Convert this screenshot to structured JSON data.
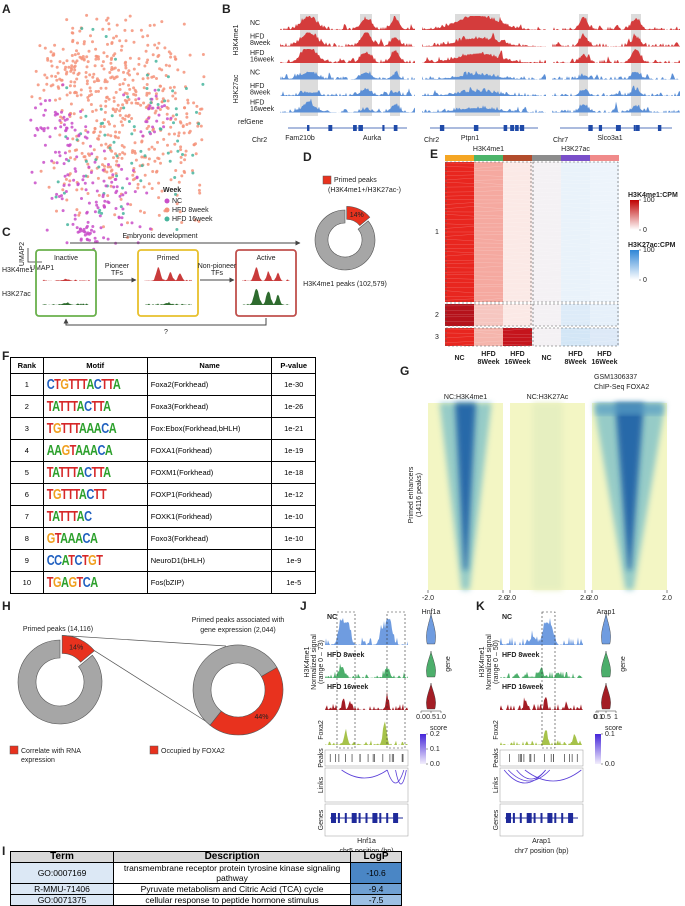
{
  "A": {
    "label": "A",
    "legend_title": "Week",
    "legend": [
      {
        "name": "NC",
        "color": "#c94fc9"
      },
      {
        "name": "HFD 8week",
        "color": "#f4937a"
      },
      {
        "name": "HFD 16week",
        "color": "#47b59d"
      }
    ],
    "xlabel": "UMAP1",
    "ylabel": "UMAP2"
  },
  "B": {
    "label": "B",
    "marks": [
      "H3K4me1",
      "H3K27ac"
    ],
    "tracks": [
      [
        "NC"
      ],
      [
        "HFD",
        "8week"
      ],
      [
        "HFD",
        "16week"
      ],
      [
        "NC"
      ],
      [
        "HFD",
        "8week"
      ],
      [
        "HFD",
        "16week"
      ]
    ],
    "ref": "refGene",
    "loci": [
      {
        "chr": "Chr2",
        "genes": [
          "Fam210b",
          "Aurka"
        ]
      },
      {
        "chr": "Chr2",
        "genes": [
          "Ptpn1"
        ]
      },
      {
        "chr": "Chr7",
        "genes": [
          "Slco3a1"
        ]
      }
    ]
  },
  "C": {
    "label": "C",
    "arrow": "Embryonic development",
    "states": [
      "Inactive",
      "Primed",
      "Active"
    ],
    "marks": [
      "H3K4me1",
      "H3K27ac"
    ],
    "transitions": [
      [
        "Pioneer",
        "TFs"
      ],
      [
        "Non-pioneer",
        "TFs"
      ]
    ],
    "reverse": "?"
  },
  "D": {
    "label": "D",
    "legend": [
      "Primed peaks",
      "(H3K4me1+/H3K27ac-)"
    ],
    "values": [
      14
    ],
    "value_labels": [
      "14%"
    ],
    "total": "H3K4me1 peaks (102,579)"
  },
  "E": {
    "label": "E",
    "groups": [
      "H3K4me1",
      "H3K27ac"
    ],
    "clusters": [
      "1",
      "2",
      "3"
    ],
    "columns": [
      [
        "NC"
      ],
      [
        "HFD",
        "8Week"
      ],
      [
        "HFD",
        "16Week"
      ],
      [
        "NC"
      ],
      [
        "HFD",
        "8Week"
      ],
      [
        "HFD",
        "16Week"
      ]
    ],
    "colorbars": [
      {
        "title": "H3K4me1:CPM",
        "ticks": [
          100,
          0
        ]
      },
      {
        "title": "H3K27ac:CPM",
        "ticks": [
          100,
          0
        ]
      }
    ]
  },
  "F": {
    "label": "F",
    "header": [
      "Rank",
      "Motif",
      "Name",
      "P-value"
    ],
    "rows": [
      [
        1,
        "CTGTTTACTTA",
        "Foxa2(Forkhead)",
        "1e-30"
      ],
      [
        2,
        "TATTTACTTA",
        "Foxa3(Forkhead)",
        "1e-26"
      ],
      [
        3,
        "TGTTTAAACA",
        "Fox:Ebox(Forkhead,bHLH)",
        "1e-21"
      ],
      [
        4,
        "AAGTAAACA",
        "FOXA1(Forkhead)",
        "1e-19"
      ],
      [
        5,
        "TATTTACTTA",
        "FOXM1(Forkhead)",
        "1e-18"
      ],
      [
        6,
        "TGTTTACTT",
        "FOXP1(Forkhead)",
        "1e-12"
      ],
      [
        7,
        "TATTTAC",
        "FOXK1(Forkhead)",
        "1e-10"
      ],
      [
        8,
        "GTAAACA",
        "Foxo3(Forkhead)",
        "1e-10"
      ],
      [
        9,
        "CCATCTGT",
        "NeuroD1(bHLH)",
        "1e-9"
      ],
      [
        10,
        "TGAGTCA",
        "Fos(bZIP)",
        "1e-5"
      ]
    ]
  },
  "G": {
    "label": "G",
    "ylabel": [
      "Primed enhancers",
      "(14116 peaks)"
    ],
    "heatmaps": [
      {
        "title": [
          "NC:H3K4me1"
        ],
        "xticks": [
          {
            "value": -2,
            "label": "-2.0"
          },
          {
            "value": 2,
            "label": "2.0"
          }
        ]
      },
      {
        "title": [
          "NC:H3K27Ac"
        ],
        "xticks": [
          {
            "value": -2,
            "label": "-2.0"
          },
          {
            "value": 2,
            "label": "2.0"
          }
        ]
      },
      {
        "title": [
          "GSM1306337",
          "ChIP-Seq FOXA2"
        ],
        "xticks": [
          {
            "value": -2,
            "label": "-2.0"
          },
          {
            "value": 2,
            "label": "2.0"
          }
        ]
      }
    ]
  },
  "H": {
    "label": "H",
    "pies": [
      {
        "title": [
          "Primed peaks (14,116)"
        ],
        "values": [
          14
        ],
        "value_labels": [
          "14%"
        ]
      },
      {
        "title": [
          "Primed peaks associated with",
          "gene expression (2,044)"
        ],
        "values": [
          44
        ],
        "value_labels": [
          "44%"
        ]
      }
    ],
    "legend": [
      [
        "Correlate with RNA",
        "expression"
      ],
      [
        "Occupied by FOXA2"
      ]
    ]
  },
  "J": {
    "label": "J",
    "gene": "Hnf1a",
    "tracks": [
      "NC",
      "HFD 8week",
      "HFD 16week"
    ],
    "ylabel": [
      "H3K4me1",
      "Normalized signal",
      "(range 0 – 73)"
    ],
    "foxa2": "Foxa2",
    "rows": [
      "Peaks",
      "Links",
      "Genes"
    ],
    "violin_label": "gene",
    "violin_ticks": [
      {
        "value": 0,
        "label": "0.0"
      },
      0.5,
      {
        "value": 1,
        "label": "1.0"
      }
    ],
    "score_title": "score",
    "score_ticks": [
      0.2,
      0.1,
      {
        "value": 0,
        "label": "0.0"
      }
    ],
    "xlabel": "chr5 position (bp)"
  },
  "K": {
    "label": "K",
    "gene": "Arap1",
    "tracks": [
      "NC",
      "HFD 8week",
      "HFD 16week"
    ],
    "ylabel": [
      "H3K4me1",
      "Normalized signal",
      "(range 0 – 50)"
    ],
    "foxa2": "Foxa2",
    "rows": [
      "Peaks",
      "Links",
      "Genes"
    ],
    "violin_label": "gene",
    "violin_ticks": [
      0,
      0.1,
      0.5,
      1
    ],
    "score_title": "score",
    "score_ticks": [
      0.1,
      {
        "value": 0,
        "label": "0.0"
      }
    ],
    "xlabel": "chr7 position (bp)"
  },
  "I": {
    "label": "I",
    "header": [
      "Term",
      "Description",
      "LogP"
    ],
    "rows": [
      [
        "GO:0007169",
        "transmembrane receptor protein tyrosine kinase signaling pathway",
        -10.6
      ],
      [
        "R-MMU-71406",
        "Pyruvate metabolism and Citric Acid (TCA) cycle",
        -9.4
      ],
      [
        "GO:0071375",
        "cellular response to peptide hormone stimulus",
        -7.5
      ]
    ]
  }
}
